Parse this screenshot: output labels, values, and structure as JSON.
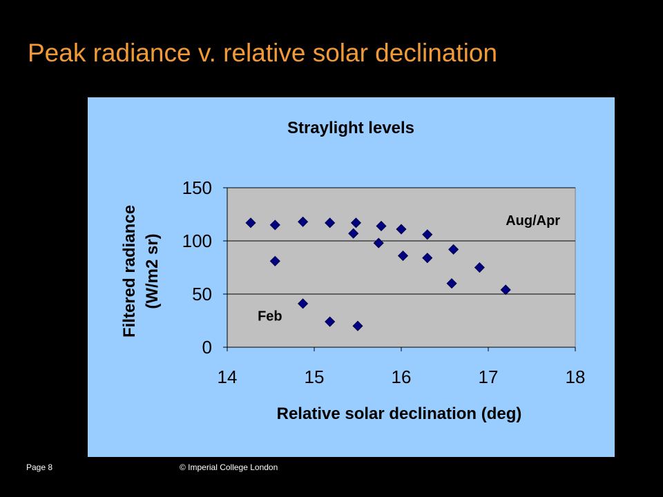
{
  "slide": {
    "title": "Peak radiance v. relative solar declination",
    "footer_page": "Page 8",
    "footer_copyright": "© Imperial College London"
  },
  "colors": {
    "background": "#000000",
    "title": "#F29A38",
    "chart_area": "#99CCFF",
    "plot_area": "#C0C0C0",
    "marker": "#000080"
  },
  "chart_data": {
    "type": "scatter",
    "title": "Straylight levels",
    "xlabel": "Relative solar declination (deg)",
    "ylabel_lines": [
      "Filtered radiance",
      "(W/m2 sr)"
    ],
    "xlim": [
      14,
      18
    ],
    "ylim": [
      0,
      150
    ],
    "xticks": [
      14,
      15,
      16,
      17,
      18
    ],
    "yticks": [
      0,
      50,
      100,
      150
    ],
    "grid": "horizontal",
    "marker": "diamond",
    "annotations": [
      {
        "text": "Aug/Apr",
        "x": 17.2,
        "y": 115
      },
      {
        "text": "Feb",
        "x": 14.35,
        "y": 25
      }
    ],
    "points": [
      {
        "x": 14.27,
        "y": 117
      },
      {
        "x": 14.55,
        "y": 115
      },
      {
        "x": 14.55,
        "y": 81
      },
      {
        "x": 14.87,
        "y": 118
      },
      {
        "x": 14.87,
        "y": 41
      },
      {
        "x": 15.18,
        "y": 117
      },
      {
        "x": 15.18,
        "y": 24
      },
      {
        "x": 15.45,
        "y": 107
      },
      {
        "x": 15.48,
        "y": 117
      },
      {
        "x": 15.5,
        "y": 20
      },
      {
        "x": 15.74,
        "y": 98
      },
      {
        "x": 15.77,
        "y": 114
      },
      {
        "x": 16.0,
        "y": 111
      },
      {
        "x": 16.02,
        "y": 86
      },
      {
        "x": 16.3,
        "y": 106
      },
      {
        "x": 16.3,
        "y": 84
      },
      {
        "x": 16.58,
        "y": 60
      },
      {
        "x": 16.6,
        "y": 92
      },
      {
        "x": 16.9,
        "y": 75
      },
      {
        "x": 17.2,
        "y": 54
      }
    ]
  }
}
